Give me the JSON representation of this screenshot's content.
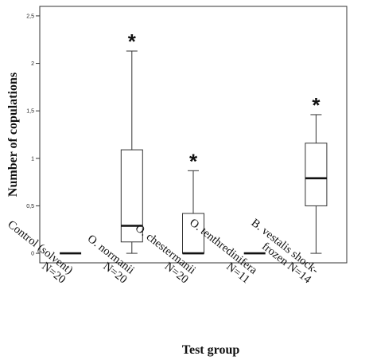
{
  "chart_data": {
    "type": "boxplot",
    "title": "",
    "xlabel": "Test group",
    "ylabel": "Number of copulations",
    "ylim": [
      -0.1,
      2.6
    ],
    "yticks": [
      {
        "value": 0,
        "label": "0"
      },
      {
        "value": 0.5,
        "label": "0,5"
      },
      {
        "value": 1,
        "label": "1"
      },
      {
        "value": 1.5,
        "label": "1,5"
      },
      {
        "value": 2,
        "label": "2"
      },
      {
        "value": 2.5,
        "label": "2,5"
      }
    ],
    "grid": false,
    "categories": [
      {
        "lines": [
          "Control (solvent)",
          "N=20"
        ],
        "min": 0,
        "q1": 0,
        "median": 0,
        "q3": 0,
        "max": 0,
        "marker": ""
      },
      {
        "lines": [
          "O. normanii",
          "N=20"
        ],
        "min": 0,
        "q1": 0.12,
        "median": 0.29,
        "q3": 1.09,
        "max": 2.13,
        "marker": "*"
      },
      {
        "lines": [
          "O. chestermanii",
          "N=20"
        ],
        "min": 0,
        "q1": 0,
        "median": 0,
        "q3": 0.42,
        "max": 0.87,
        "marker": "*"
      },
      {
        "lines": [
          "O. tenthredinifera",
          "N=11"
        ],
        "min": 0,
        "q1": 0,
        "median": 0,
        "q3": 0,
        "max": 0,
        "marker": ""
      },
      {
        "lines": [
          "B. vestalis shock-",
          "frozen N=14"
        ],
        "min": 0,
        "q1": 0.5,
        "median": 0.79,
        "q3": 1.16,
        "max": 1.46,
        "marker": "*"
      }
    ]
  }
}
